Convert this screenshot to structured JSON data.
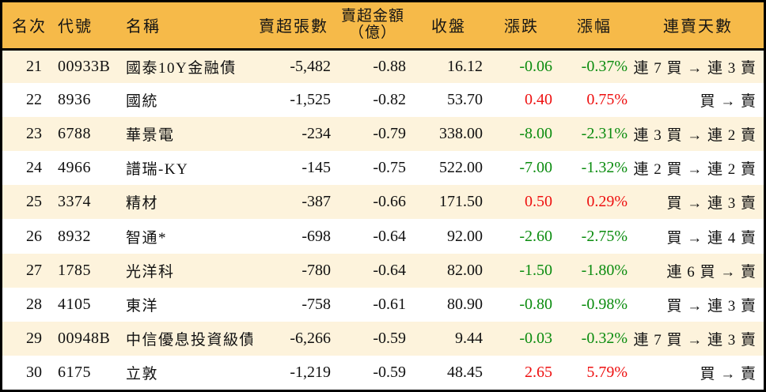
{
  "colors": {
    "header_bg": "#F6BA49",
    "row_alt": "#FDF3DC",
    "up_red": "#EE1010",
    "down_green": "#0B8C0F",
    "border": "#000000"
  },
  "table": {
    "headers": {
      "rank": "名次",
      "code": "代號",
      "name": "名稱",
      "sell_volume": "賣超張數",
      "sell_amount_line1": "賣超金額",
      "sell_amount_line2": "（億）",
      "close": "收盤",
      "change": "漲跌",
      "change_pct": "漲幅",
      "streak": "連賣天數"
    },
    "rows": [
      {
        "rank": "21",
        "code": "00933B",
        "name": "國泰10Y金融債",
        "sell_volume": "-5,482",
        "sell_amount": "-0.88",
        "close": "16.12",
        "change": "-0.06",
        "change_pct": "-0.37%",
        "trend": "down",
        "streak": "連 7 買 → 連 3 賣"
      },
      {
        "rank": "22",
        "code": "8936",
        "name": "國統",
        "sell_volume": "-1,525",
        "sell_amount": "-0.82",
        "close": "53.70",
        "change": "0.40",
        "change_pct": "0.75%",
        "trend": "up",
        "streak": "買 → 賣"
      },
      {
        "rank": "23",
        "code": "6788",
        "name": "華景電",
        "sell_volume": "-234",
        "sell_amount": "-0.79",
        "close": "338.00",
        "change": "-8.00",
        "change_pct": "-2.31%",
        "trend": "down",
        "streak": "連 3 買 → 連 2 賣"
      },
      {
        "rank": "24",
        "code": "4966",
        "name": "譜瑞-KY",
        "sell_volume": "-145",
        "sell_amount": "-0.75",
        "close": "522.00",
        "change": "-7.00",
        "change_pct": "-1.32%",
        "trend": "down",
        "streak": "連 2 買 → 連 2 賣"
      },
      {
        "rank": "25",
        "code": "3374",
        "name": "精材",
        "sell_volume": "-387",
        "sell_amount": "-0.66",
        "close": "171.50",
        "change": "0.50",
        "change_pct": "0.29%",
        "trend": "up",
        "streak": "買 → 連 3 賣"
      },
      {
        "rank": "26",
        "code": "8932",
        "name": "智通*",
        "sell_volume": "-698",
        "sell_amount": "-0.64",
        "close": "92.00",
        "change": "-2.60",
        "change_pct": "-2.75%",
        "trend": "down",
        "streak": "買 → 連 4 賣"
      },
      {
        "rank": "27",
        "code": "1785",
        "name": "光洋科",
        "sell_volume": "-780",
        "sell_amount": "-0.64",
        "close": "82.00",
        "change": "-1.50",
        "change_pct": "-1.80%",
        "trend": "down",
        "streak": "連 6 買 → 賣"
      },
      {
        "rank": "28",
        "code": "4105",
        "name": "東洋",
        "sell_volume": "-758",
        "sell_amount": "-0.61",
        "close": "80.90",
        "change": "-0.80",
        "change_pct": "-0.98%",
        "trend": "down",
        "streak": "買 → 連 3 賣"
      },
      {
        "rank": "29",
        "code": "00948B",
        "name": "中信優息投資級債",
        "sell_volume": "-6,266",
        "sell_amount": "-0.59",
        "close": "9.44",
        "change": "-0.03",
        "change_pct": "-0.32%",
        "trend": "down",
        "streak": "連 7 買 → 連 3 賣"
      },
      {
        "rank": "30",
        "code": "6175",
        "name": "立敦",
        "sell_volume": "-1,219",
        "sell_amount": "-0.59",
        "close": "48.45",
        "change": "2.65",
        "change_pct": "5.79%",
        "trend": "up",
        "streak": "買 → 賣"
      }
    ]
  }
}
